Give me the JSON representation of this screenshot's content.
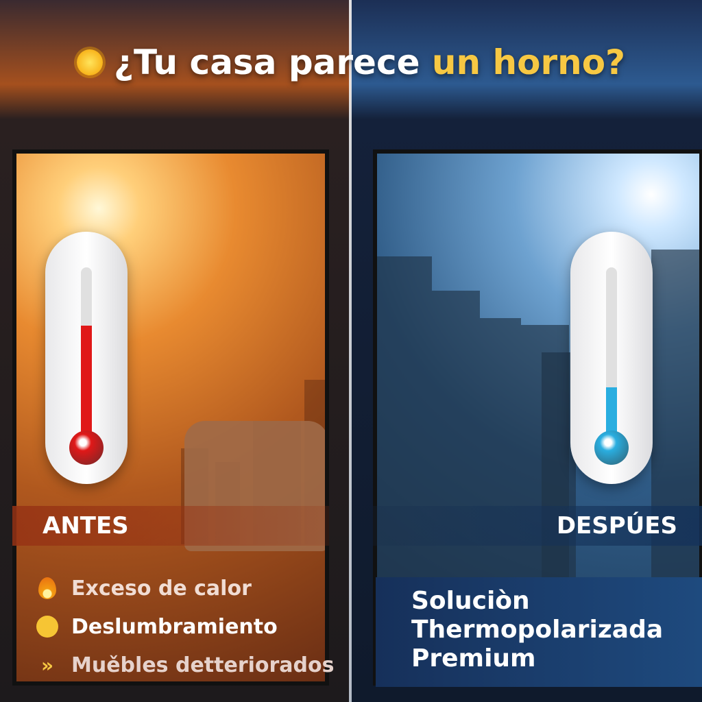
{
  "headline": {
    "prefix": "¿Tu casa parece ",
    "highlight": "un horno?",
    "icon": "sun-icon",
    "highlight_color": "#f7c843"
  },
  "before": {
    "label": "ANTES",
    "thermometer_level": 0.66,
    "thermometer_color": "#e01818",
    "items": [
      {
        "icon": "fire-drop-icon",
        "text": "Exceso de calor"
      },
      {
        "icon": "squinting-face-icon",
        "text": "Deslumbramiento"
      },
      {
        "icon": "double-chevron-icon",
        "text": "Muěbles detteriorados"
      }
    ]
  },
  "after": {
    "label": "DESPÚES",
    "thermometer_level": 0.3,
    "thermometer_color": "#2aaee0",
    "solution": [
      "Soluciòn",
      "Thermopolarizada",
      "Premium"
    ]
  }
}
